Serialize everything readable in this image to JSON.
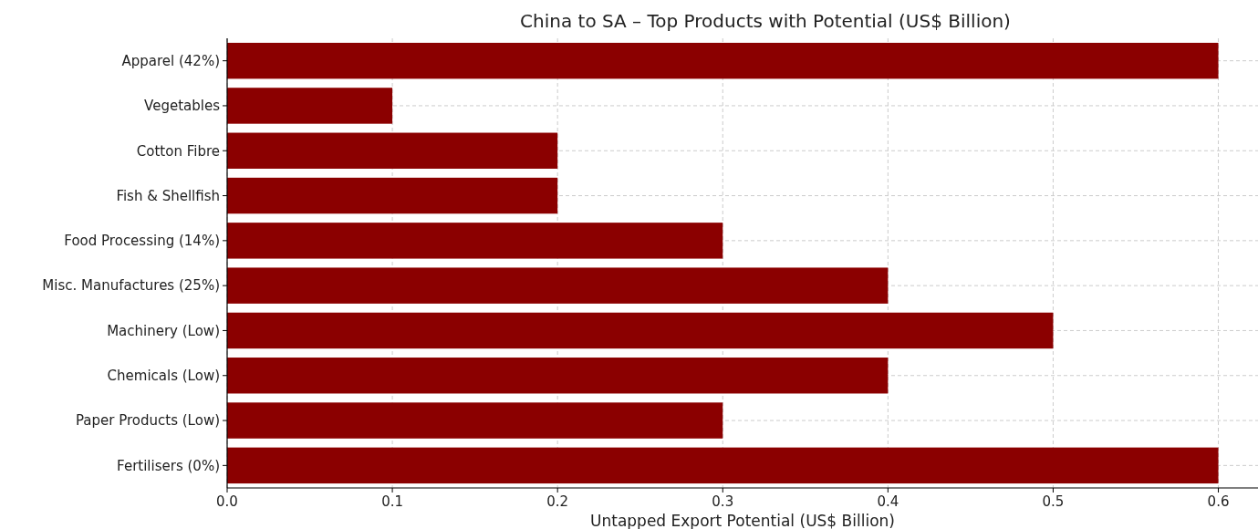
{
  "chart_data": {
    "type": "bar",
    "orientation": "horizontal",
    "title": "China to SA – Top Products with Potential (US$ Billion)",
    "xlabel": "Untapped Export Potential (US$ Billion)",
    "categories": [
      "Apparel (42%)",
      "Vegetables",
      "Cotton Fibre",
      "Fish & Shellfish",
      "Food Processing (14%)",
      "Misc. Manufactures (25%)",
      "Machinery (Low)",
      "Chemicals (Low)",
      "Paper Products (Low)",
      "Fertilisers (0%)"
    ],
    "values": [
      0.6,
      0.1,
      0.2,
      0.2,
      0.3,
      0.4,
      0.5,
      0.4,
      0.3,
      0.6
    ],
    "color": "#8b0000",
    "xlim": [
      0,
      0.624
    ],
    "xticks": [
      {
        "value": 0,
        "label": "0.0"
      },
      0.1,
      0.2,
      0.3,
      0.4,
      0.5,
      0.6
    ],
    "grid": true
  }
}
